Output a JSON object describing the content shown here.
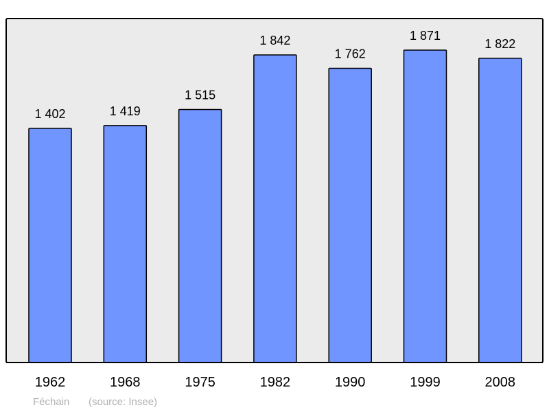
{
  "chart_data": {
    "type": "bar",
    "categories": [
      "1962",
      "1968",
      "1975",
      "1982",
      "1990",
      "1999",
      "2008"
    ],
    "values": [
      1402,
      1419,
      1515,
      1842,
      1762,
      1871,
      1822
    ],
    "value_labels": [
      "1 402",
      "1 419",
      "1 515",
      "1 842",
      "1 762",
      "1 871",
      "1 822"
    ],
    "title": "",
    "xlabel": "",
    "ylabel": "",
    "ylim": [
      0,
      2060
    ],
    "grid": false,
    "legend": "none",
    "colors": {
      "bar": "#7095ff",
      "plot_background": "#ebebeb",
      "frame": "#000000",
      "footer_text": "#b0b0b0"
    }
  },
  "footer": {
    "place": "Féchain",
    "source": "(source: Insee)"
  }
}
